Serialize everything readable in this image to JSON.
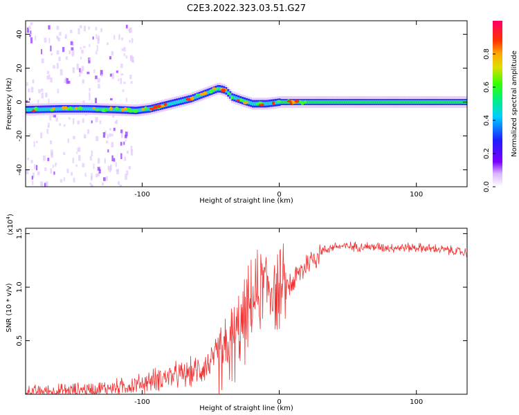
{
  "title": "C2E3.2022.323.03.51.G27",
  "colors": {
    "snr_line": "#ee3333",
    "axis": "#000000"
  },
  "chart_data": [
    {
      "type": "heatmap",
      "xlabel": "Height of straight line (km)",
      "ylabel": "Frequency (Hz)",
      "xlim": [
        -185,
        137
      ],
      "ylim": [
        -50,
        48
      ],
      "x_ticks": [
        -100,
        0,
        100
      ],
      "y_ticks": [
        -40,
        -20,
        0,
        20,
        40
      ],
      "colorbar": {
        "label": "Normalized spectral amplitude",
        "range": [
          0,
          1
        ],
        "ticks": [
          0.0,
          0.2,
          0.4,
          0.6,
          0.8
        ],
        "colormap": "rainbow (white-violet-blue-cyan-green-yellow-orange-red-magenta)"
      },
      "ridge": {
        "x": [
          -185,
          -160,
          -140,
          -120,
          -105,
          -95,
          -85,
          -75,
          -65,
          -55,
          -45,
          -40,
          -35,
          -28,
          -20,
          -10,
          0,
          20,
          60,
          100,
          137
        ],
        "frequency": [
          -4.5,
          -4,
          -4,
          -4.5,
          -5,
          -4,
          -2,
          0,
          2,
          5,
          8,
          7,
          3,
          1,
          -1,
          -1,
          0,
          0,
          0,
          0,
          0
        ]
      }
    },
    {
      "type": "line",
      "xlabel": "Height of straight line (km)",
      "ylabel": "SNR (10 * v/v)",
      "scale_label": "(x10",
      "scale_exp": "4",
      "scale_close": ")",
      "xlim": [
        -185,
        137
      ],
      "ylim": [
        0,
        1.55
      ],
      "x_ticks": [
        -100,
        0,
        100
      ],
      "y_ticks": [
        0.5,
        1.0,
        1.5
      ],
      "y_tick_labels": [
        "0.5",
        "1.0",
        "1.5"
      ],
      "envelope": {
        "x": [
          -185,
          -160,
          -130,
          -115,
          -100,
          -90,
          -80,
          -70,
          -60,
          -50,
          -40,
          -30,
          -25,
          -20,
          -15,
          -10,
          -5,
          0,
          10,
          20,
          30,
          40,
          60,
          80,
          100,
          120,
          137
        ],
        "y": [
          0.02,
          0.03,
          0.05,
          0.07,
          0.1,
          0.14,
          0.17,
          0.18,
          0.22,
          0.3,
          0.38,
          0.55,
          0.7,
          0.85,
          0.95,
          1.05,
          1.0,
          0.95,
          1.05,
          1.22,
          1.33,
          1.38,
          1.38,
          1.37,
          1.37,
          1.35,
          1.32
        ]
      }
    }
  ]
}
